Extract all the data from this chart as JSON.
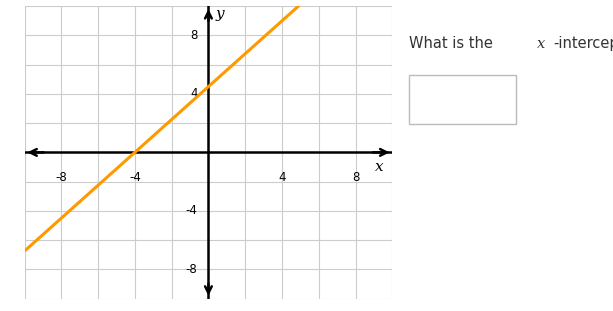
{
  "xlim": [
    -10,
    10
  ],
  "ylim": [
    -10,
    10
  ],
  "xtick_labels": [
    -8,
    -4,
    4,
    8
  ],
  "ytick_labels": [
    -8,
    -4,
    4,
    8
  ],
  "grid_color": "#cccccc",
  "axis_color": "#000000",
  "line_color": "#FF9900",
  "line_width": 2.2,
  "line_slope": 1.125,
  "line_intercept": 4.5,
  "bg_color": "#ffffff",
  "xlabel": "x",
  "ylabel": "y",
  "text_color": "#333333",
  "question": "What is the ",
  "question_x": "x",
  "question_end": "-intercept?",
  "q_fontsize": 10.5,
  "box_color": "#bbbbbb"
}
